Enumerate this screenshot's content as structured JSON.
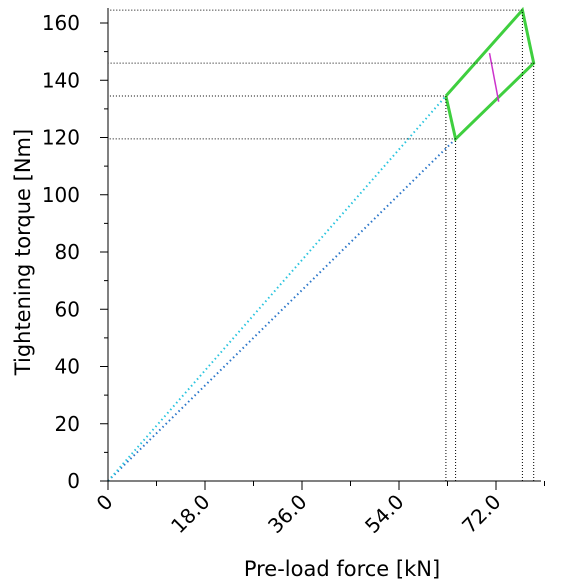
{
  "chart_data": {
    "type": "line",
    "title": "",
    "xlabel": "Pre-load force [kN]",
    "ylabel": "Tightening torque [Nm]",
    "xlim": [
      0,
      88
    ],
    "ylim": [
      0,
      165
    ],
    "x_ticks": [
      0,
      18,
      36,
      54,
      72
    ],
    "x_tick_labels": [
      "0",
      "18.0",
      "36.0",
      "54.0",
      "72.0"
    ],
    "y_ticks": [
      0,
      20,
      40,
      60,
      80,
      100,
      120,
      140,
      160
    ],
    "y_tick_labels": [
      "0",
      "20",
      "40",
      "60",
      "80",
      "100",
      "120",
      "140",
      "160"
    ],
    "grid": false,
    "legend": "none",
    "series": [
      {
        "style": "dotted",
        "color": "#2b76c9",
        "points": [
          [
            0,
            0
          ],
          [
            64.5,
            119.5
          ]
        ]
      },
      {
        "style": "dotted",
        "color": "#29c4de",
        "points": [
          [
            0,
            0
          ],
          [
            62.7,
            134.5
          ]
        ]
      },
      {
        "style": "solid",
        "color": "#3fcf3f",
        "points": [
          [
            62.7,
            134.5
          ],
          [
            76.9,
            164.5
          ],
          [
            79,
            146
          ],
          [
            64.5,
            119.5
          ],
          [
            62.7,
            134.5
          ]
        ]
      },
      {
        "style": "solid",
        "color": "#cc33cc",
        "points": [
          [
            70.8,
            149.5
          ],
          [
            72.5,
            132.5
          ]
        ]
      },
      {
        "style": "dotted-reference",
        "color": "#000000",
        "points": [
          [
            62.7,
            0
          ],
          [
            62.7,
            134.5
          ],
          [
            0,
            134.5
          ]
        ]
      },
      {
        "style": "dotted-reference",
        "color": "#000000",
        "points": [
          [
            64.5,
            0
          ],
          [
            64.5,
            119.5
          ],
          [
            0,
            119.5
          ]
        ]
      },
      {
        "style": "dotted-reference",
        "color": "#000000",
        "points": [
          [
            76.9,
            0
          ],
          [
            76.9,
            164.5
          ],
          [
            0,
            164.5
          ]
        ]
      },
      {
        "style": "dotted-reference",
        "color": "#000000",
        "points": [
          [
            79,
            0
          ],
          [
            79,
            146
          ],
          [
            0,
            146
          ]
        ]
      }
    ]
  }
}
